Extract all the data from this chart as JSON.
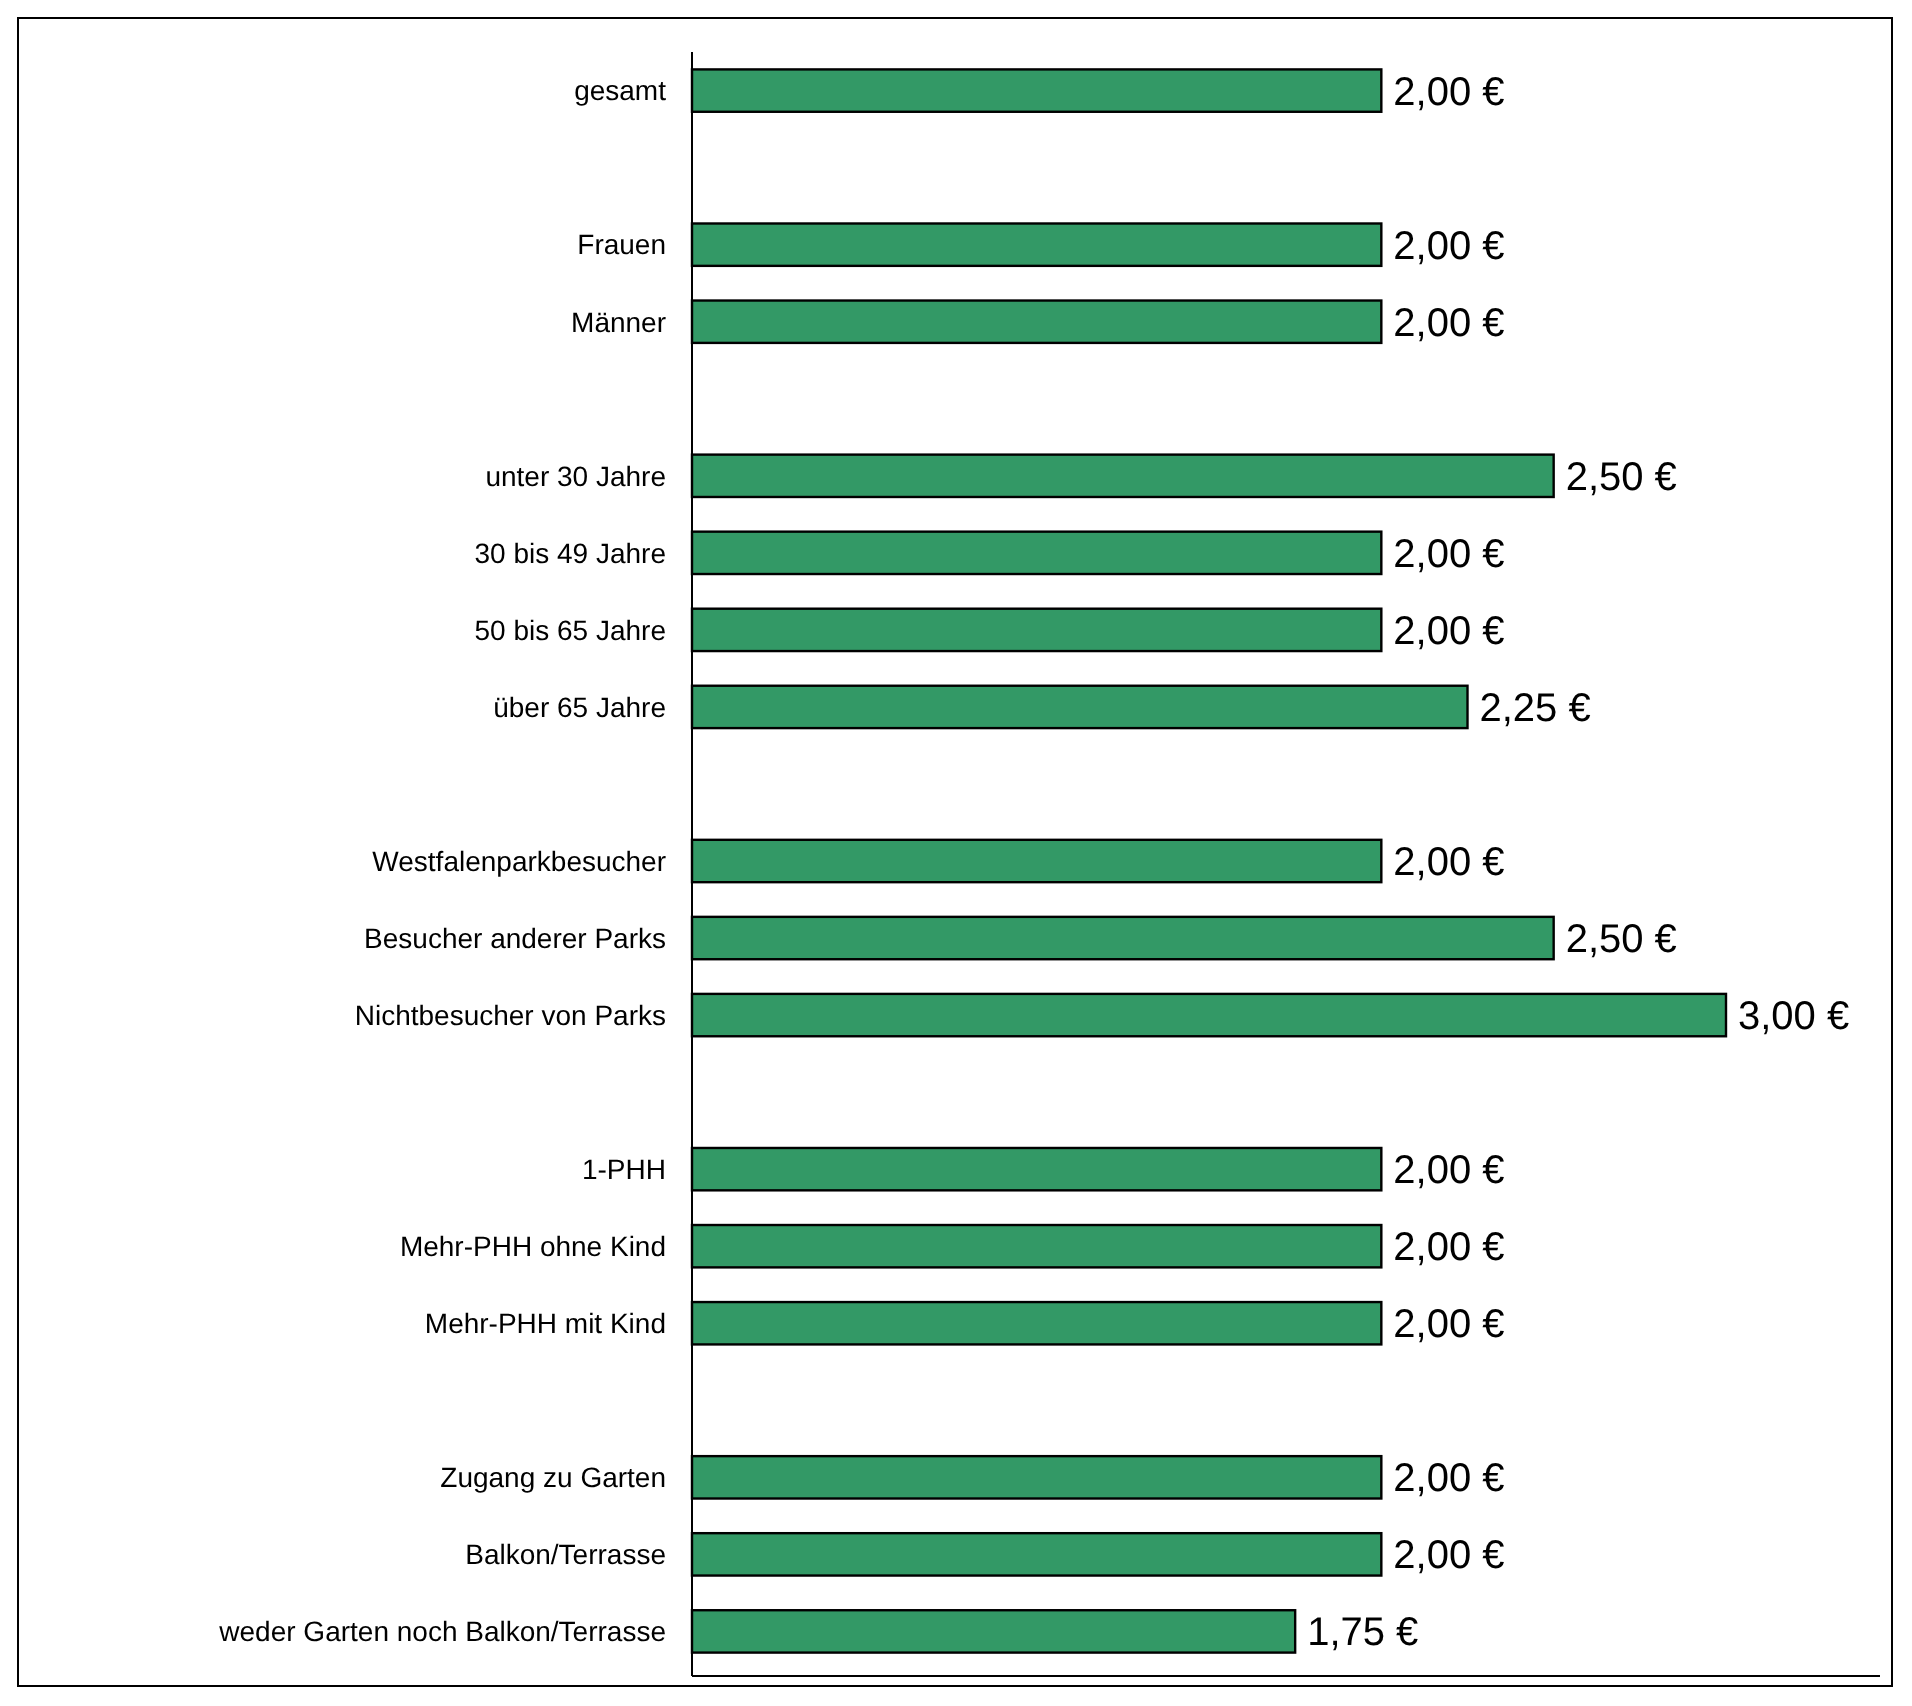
{
  "chart_data": {
    "type": "bar",
    "orientation": "horizontal",
    "data_labels": true,
    "color": "#339966",
    "categories": [
      "gesamt",
      null,
      "Frauen",
      "Männer",
      null,
      "unter 30 Jahre",
      "30 bis 49 Jahre",
      "50 bis 65 Jahre",
      "über 65 Jahre",
      null,
      "Westfalenparkbesucher",
      "Besucher anderer Parks",
      "Nichtbesucher von Parks",
      null,
      "1-PHH",
      "Mehr-PHH ohne Kind",
      "Mehr-PHH mit Kind",
      null,
      "Zugang zu Garten",
      "Balkon/Terrasse",
      "weder Garten noch Balkon/Terrasse"
    ],
    "values": [
      2.0,
      null,
      2.0,
      2.0,
      null,
      2.5,
      2.0,
      2.0,
      2.25,
      null,
      2.0,
      2.5,
      3.0,
      null,
      2.0,
      2.0,
      2.0,
      null,
      2.0,
      2.0,
      1.75
    ],
    "value_labels": [
      "2,00 €",
      null,
      "2,00 €",
      "2,00 €",
      null,
      "2,50 €",
      "2,00 €",
      "2,00 €",
      "2,25 €",
      null,
      "2,00 €",
      "2,50 €",
      "3,00 €",
      null,
      "2,00 €",
      "2,00 €",
      "2,00 €",
      null,
      "2,00 €",
      "2,00 €",
      "1,75 €"
    ]
  }
}
